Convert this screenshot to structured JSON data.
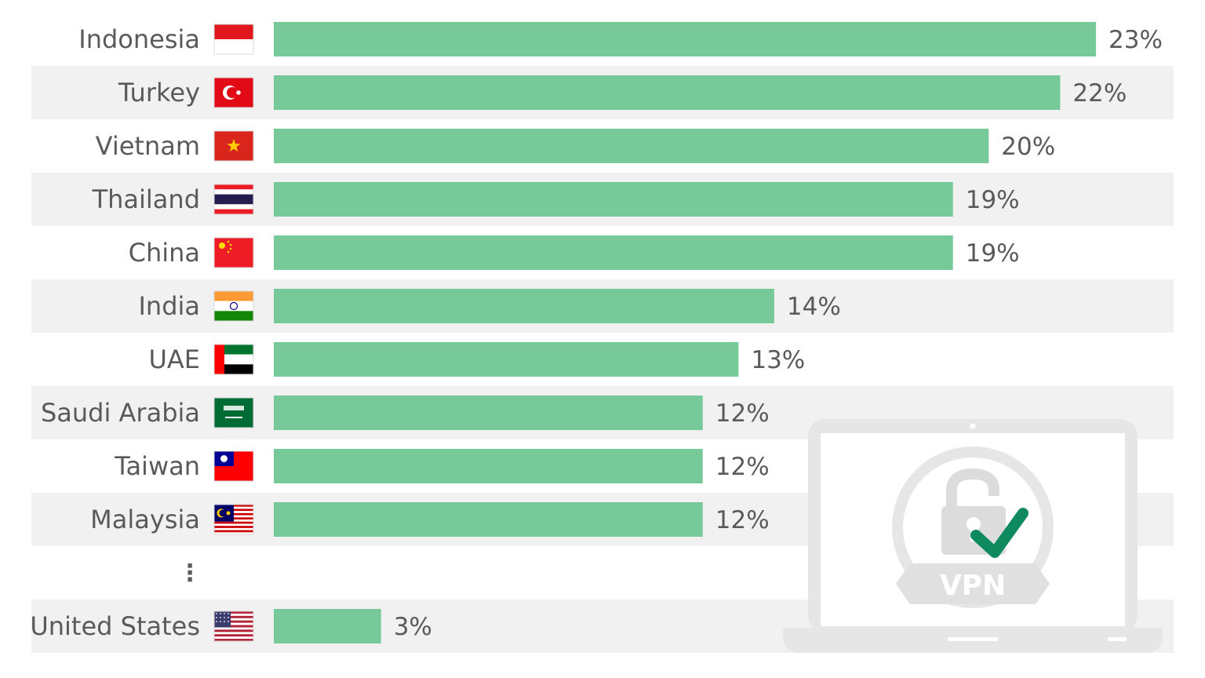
{
  "chart_data": {
    "type": "bar",
    "orientation": "horizontal",
    "categories": [
      "Indonesia",
      "Turkey",
      "Vietnam",
      "Thailand",
      "China",
      "India",
      "UAE",
      "Saudi Arabia",
      "Taiwan",
      "Malaysia",
      "United States"
    ],
    "values": [
      23,
      22,
      20,
      19,
      19,
      14,
      13,
      12,
      12,
      12,
      3
    ],
    "value_labels": [
      "23%",
      "22%",
      "20%",
      "19%",
      "19%",
      "14%",
      "13%",
      "12%",
      "12%",
      "12%",
      "3%"
    ],
    "flags": [
      "indonesia-flag",
      "turkey-flag",
      "vietnam-flag",
      "thailand-flag",
      "china-flag",
      "india-flag",
      "uae-flag",
      "saudi-arabia-flag",
      "taiwan-flag",
      "malaysia-flag",
      "united-states-flag"
    ],
    "gap_marker": "⋮",
    "xlim": [
      0,
      23
    ],
    "grid": false,
    "legend": "none",
    "bar_color": "#78c999",
    "stripe_color": "#f1f1f1"
  },
  "illustration": {
    "laptop_icon": "laptop-icon",
    "lock_icon": "unlocked-padlock-icon",
    "check_icon": "checkmark-icon",
    "badge_text": "VPN",
    "check_color": "#0f8a5f"
  }
}
